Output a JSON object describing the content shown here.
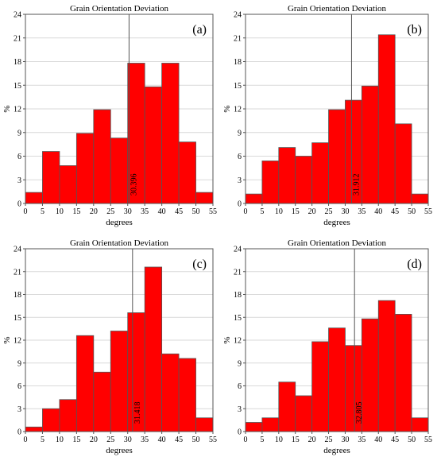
{
  "chart_data": [
    {
      "type": "bar",
      "panel_label": "(a)",
      "title": "Grain Orientation Deviation",
      "xlabel": "degrees",
      "ylabel": "%",
      "x_ticks": [
        "0",
        "5",
        "10",
        "15",
        "20",
        "25",
        "30",
        "35",
        "40",
        "45",
        "50",
        "55"
      ],
      "y_ticks": [
        "0",
        "3",
        "6",
        "9",
        "12",
        "15",
        "18",
        "21",
        "24"
      ],
      "xlim": [
        0,
        55
      ],
      "ylim": [
        0,
        24
      ],
      "bin_edges": [
        0,
        5,
        10,
        15,
        20,
        25,
        30,
        35,
        40,
        45,
        50,
        55
      ],
      "values": [
        1.4,
        6.6,
        4.8,
        8.9,
        11.9,
        8.3,
        17.8,
        14.8,
        17.8,
        7.8,
        1.4
      ],
      "mean_value": 30.396,
      "mean_label": "30.396",
      "bar_color": "#ff0000",
      "grid": true
    },
    {
      "type": "bar",
      "panel_label": "(b)",
      "title": "Grain Orientation Deviation",
      "xlabel": "degrees",
      "ylabel": "%",
      "x_ticks": [
        "0",
        "5",
        "10",
        "15",
        "20",
        "25",
        "30",
        "35",
        "40",
        "45",
        "50",
        "55"
      ],
      "y_ticks": [
        "0",
        "3",
        "6",
        "9",
        "12",
        "15",
        "18",
        "21",
        "24"
      ],
      "xlim": [
        0,
        55
      ],
      "ylim": [
        0,
        24
      ],
      "bin_edges": [
        0,
        5,
        10,
        15,
        20,
        25,
        30,
        35,
        40,
        45,
        50,
        55
      ],
      "values": [
        1.2,
        5.4,
        7.1,
        6.0,
        7.7,
        11.9,
        13.1,
        14.9,
        21.4,
        10.1,
        1.2
      ],
      "mean_value": 31.912,
      "mean_label": "31.912",
      "bar_color": "#ff0000",
      "grid": true
    },
    {
      "type": "bar",
      "panel_label": "(c)",
      "title": "Grain Orientation Deviation",
      "xlabel": "degrees",
      "ylabel": "%",
      "x_ticks": [
        "0",
        "5",
        "10",
        "15",
        "20",
        "25",
        "30",
        "35",
        "40",
        "45",
        "50",
        "55"
      ],
      "y_ticks": [
        "0",
        "3",
        "6",
        "9",
        "12",
        "15",
        "18",
        "21",
        "24"
      ],
      "xlim": [
        0,
        55
      ],
      "ylim": [
        0,
        24
      ],
      "bin_edges": [
        0,
        5,
        10,
        15,
        20,
        25,
        30,
        35,
        40,
        45,
        50,
        55
      ],
      "values": [
        0.6,
        3.0,
        4.2,
        12.6,
        7.8,
        13.2,
        15.6,
        21.6,
        10.2,
        9.6,
        1.8
      ],
      "mean_value": 31.418,
      "mean_label": "31.418",
      "bar_color": "#ff0000",
      "grid": true
    },
    {
      "type": "bar",
      "panel_label": "(d)",
      "title": "Grain Orientation Deviation",
      "xlabel": "degrees",
      "ylabel": "%",
      "x_ticks": [
        "0",
        "5",
        "10",
        "15",
        "20",
        "25",
        "30",
        "35",
        "40",
        "45",
        "50",
        "55"
      ],
      "y_ticks": [
        "0",
        "3",
        "6",
        "9",
        "12",
        "15",
        "18",
        "21",
        "24"
      ],
      "xlim": [
        0,
        55
      ],
      "ylim": [
        0,
        24
      ],
      "bin_edges": [
        0,
        5,
        10,
        15,
        20,
        25,
        30,
        35,
        40,
        45,
        50,
        55
      ],
      "values": [
        1.2,
        1.8,
        6.5,
        4.7,
        11.8,
        13.6,
        11.3,
        14.8,
        17.2,
        15.4,
        1.8
      ],
      "mean_value": 32.805,
      "mean_label": "32.805",
      "bar_color": "#ff0000",
      "grid": true
    }
  ]
}
